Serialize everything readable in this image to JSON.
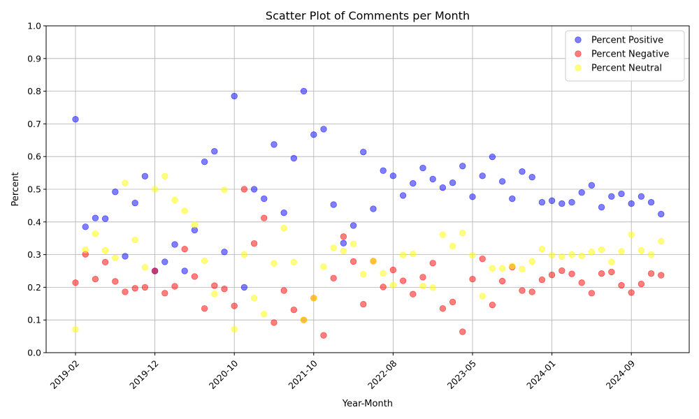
{
  "chart_data": {
    "type": "scatter",
    "title": "Scatter Plot of Comments per Month",
    "xlabel": "Year-Month",
    "ylabel": "Percent",
    "ylim": [
      0,
      1
    ],
    "yticks": [
      "0.0",
      "0.1",
      "0.2",
      "0.3",
      "0.4",
      "0.5",
      "0.6",
      "0.7",
      "0.8",
      "0.9",
      "1.0"
    ],
    "xtick_labels": [
      "2019-02",
      "2019-12",
      "2020-10",
      "2021-10",
      "2022-08",
      "2023-05",
      "2024-01",
      "2024-09"
    ],
    "grid": true,
    "legend_position": "top-right",
    "x": [
      "2019-02",
      "2019-03",
      "2019-04",
      "2019-05",
      "2019-06",
      "2019-07",
      "2019-08",
      "2019-09",
      "2019-12",
      "2020-01",
      "2020-02",
      "2020-03",
      "2020-04",
      "2020-05",
      "2020-06",
      "2020-07",
      "2020-10",
      "2020-11",
      "2020-12",
      "2021-01",
      "2021-02",
      "2021-03",
      "2021-04",
      "2021-05",
      "2021-10",
      "2021-11",
      "2021-12",
      "2022-01",
      "2022-02",
      "2022-03",
      "2022-04",
      "2022-05",
      "2022-08",
      "2022-09",
      "2022-10",
      "2022-11",
      "2022-12",
      "2023-01",
      "2023-02",
      "2023-03",
      "2023-05",
      "2023-06",
      "2023-07",
      "2023-08",
      "2023-09",
      "2023-10",
      "2023-11",
      "2023-12",
      "2024-01",
      "2024-02",
      "2024-03",
      "2024-04",
      "2024-05",
      "2024-06",
      "2024-07",
      "2024-08",
      "2024-09",
      "2024-10",
      "2024-11",
      "2024-12"
    ],
    "series": [
      {
        "name": "Percent Positive",
        "color": "#0000ff",
        "values": [
          0.714,
          0.385,
          0.412,
          0.41,
          0.492,
          0.295,
          0.458,
          0.54,
          0.25,
          0.278,
          0.331,
          0.25,
          0.375,
          0.584,
          0.616,
          0.308,
          0.785,
          0.2,
          0.5,
          0.471,
          0.637,
          0.428,
          0.595,
          0.8,
          0.667,
          0.684,
          0.453,
          0.335,
          0.389,
          0.614,
          0.44,
          0.557,
          0.541,
          0.481,
          0.518,
          0.565,
          0.531,
          0.505,
          0.52,
          0.571,
          0.477,
          0.541,
          0.599,
          0.524,
          0.471,
          0.554,
          0.537,
          0.46,
          0.465,
          0.456,
          0.46,
          0.49,
          0.512,
          0.445,
          0.478,
          0.486,
          0.456,
          0.478,
          0.46,
          0.424
        ]
      },
      {
        "name": "Percent Negative",
        "color": "#ff0000",
        "values": [
          0.214,
          0.301,
          0.225,
          0.277,
          0.218,
          0.186,
          0.197,
          0.2,
          0.25,
          0.182,
          0.203,
          0.317,
          0.233,
          0.135,
          0.205,
          0.195,
          0.143,
          0.5,
          0.334,
          0.412,
          0.092,
          0.19,
          0.131,
          0.1,
          0.167,
          0.053,
          0.228,
          0.355,
          0.279,
          0.148,
          0.28,
          0.201,
          0.253,
          0.22,
          0.179,
          0.231,
          0.274,
          0.135,
          0.155,
          0.064,
          0.225,
          0.287,
          0.146,
          0.219,
          0.262,
          0.19,
          0.186,
          0.223,
          0.238,
          0.251,
          0.241,
          0.214,
          0.182,
          0.242,
          0.247,
          0.206,
          0.184,
          0.21,
          0.242,
          0.237
        ]
      },
      {
        "name": "Percent Neutral",
        "color": "#ffff00",
        "values": [
          0.071,
          0.315,
          0.364,
          0.313,
          0.29,
          0.519,
          0.345,
          0.261,
          0.5,
          0.54,
          0.467,
          0.434,
          0.391,
          0.281,
          0.18,
          0.498,
          0.072,
          0.3,
          0.167,
          0.118,
          0.273,
          0.381,
          0.277,
          0.1,
          0.167,
          0.263,
          0.321,
          0.311,
          0.333,
          0.24,
          0.28,
          0.243,
          0.207,
          0.299,
          0.302,
          0.204,
          0.199,
          0.361,
          0.326,
          0.366,
          0.298,
          0.173,
          0.258,
          0.258,
          0.265,
          0.256,
          0.279,
          0.317,
          0.298,
          0.294,
          0.3,
          0.296,
          0.308,
          0.315,
          0.278,
          0.31,
          0.361,
          0.313,
          0.3,
          0.341
        ]
      }
    ]
  }
}
